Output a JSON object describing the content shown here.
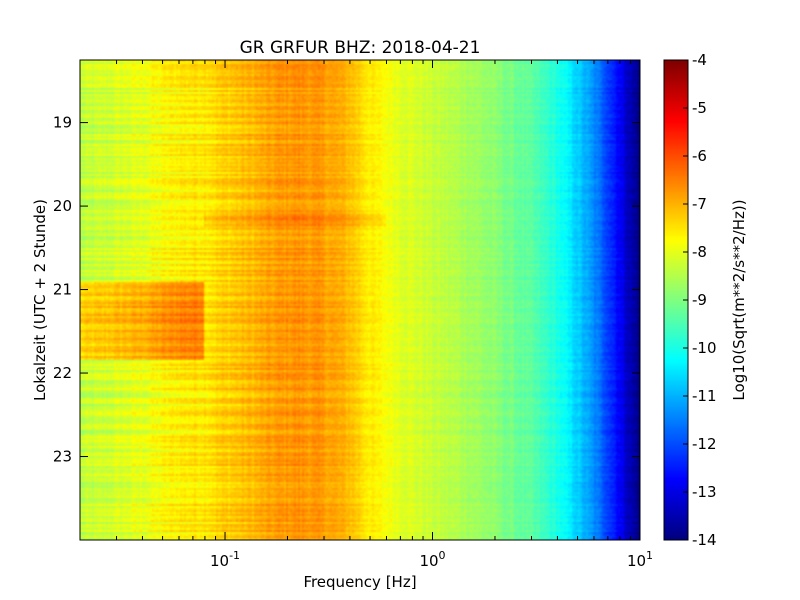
{
  "chart_data": {
    "type": "heatmap",
    "title": "GR GRFUR BHZ: 2018-04-21",
    "xlabel": "Frequency [Hz]",
    "ylabel": "Lokalzeit (UTC + 2 Stunde)",
    "x_scale": "log",
    "xlim": [
      0.02,
      10
    ],
    "x_ticks": [
      {
        "value": 0.1,
        "base": "10",
        "exp": "-1"
      },
      {
        "value": 1,
        "base": "10",
        "exp": "0"
      },
      {
        "value": 10,
        "base": "10",
        "exp": "1"
      }
    ],
    "ylim": [
      18.25,
      24.0
    ],
    "y_inverted": true,
    "y_ticks": [
      "19",
      "20",
      "21",
      "22",
      "23"
    ],
    "colorbar": {
      "label": "Log10(Sqrt(m**2/s**2/Hz))",
      "range": [
        -14,
        -4
      ],
      "ticks": [
        "-4",
        "-5",
        "-6",
        "-7",
        "-8",
        "-9",
        "-10",
        "-11",
        "-12",
        "-13",
        "-14"
      ],
      "colormap": "jet"
    },
    "spectrum_profile": {
      "frequency_hz": [
        0.02,
        0.04,
        0.06,
        0.08,
        0.1,
        0.13,
        0.18,
        0.22,
        0.3,
        0.4,
        0.5,
        0.7,
        1.0,
        1.5,
        2.0,
        3.0,
        4.0,
        5.0,
        6.0,
        7.0,
        8.0,
        9.0,
        10.0
      ],
      "value": [
        -8.4,
        -8.0,
        -7.6,
        -7.5,
        -7.3,
        -7.1,
        -6.8,
        -6.7,
        -6.8,
        -7.1,
        -7.6,
        -8.0,
        -8.3,
        -8.6,
        -8.9,
        -9.4,
        -10.0,
        -10.7,
        -11.4,
        -12.1,
        -12.8,
        -13.5,
        -14.0
      ]
    },
    "features": [
      {
        "time_start": 20.9,
        "time_end": 21.85,
        "freq_start": 0.02,
        "freq_end": 0.08,
        "offset": 1.0
      },
      {
        "time_start": 20.1,
        "time_end": 20.25,
        "freq_start": 0.08,
        "freq_end": 0.6,
        "offset": 0.3
      }
    ]
  }
}
